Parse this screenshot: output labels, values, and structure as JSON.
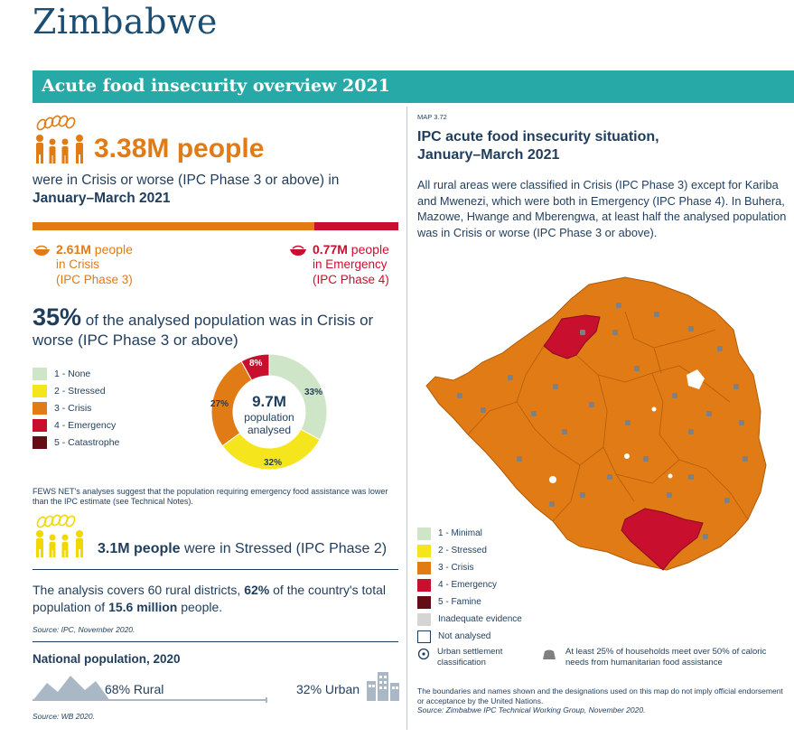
{
  "country": "Zimbabwe",
  "banner_title": "Acute food insecurity overview 2021",
  "headline": {
    "number": "3.38M people",
    "line": "were in Crisis or worse (IPC Phase 3 or above) in",
    "period": "January–March 2021"
  },
  "split": {
    "crisis_share": 0.77,
    "phase3": {
      "num": "2.61M",
      "unit": " people",
      "line1": "in Crisis",
      "line2": "(IPC Phase 3)"
    },
    "phase4": {
      "num": "0.77M",
      "unit": " people",
      "line1": "in Emergency",
      "line2": "(IPC Phase 4)"
    }
  },
  "analysed": {
    "pct": "35%",
    "text": " of the analysed population was in Crisis or worse (IPC Phase 3 or above)"
  },
  "phase_legend": [
    {
      "label": "1 - None",
      "color": "#cfe5c8"
    },
    {
      "label": "2 - Stressed",
      "color": "#f5e51c"
    },
    {
      "label": "3 - Crisis",
      "color": "#e07b16"
    },
    {
      "label": "4 - Emergency",
      "color": "#c8102e"
    },
    {
      "label": "5 - Catastrophe",
      "color": "#640d14"
    }
  ],
  "donut": {
    "value": "9.7M",
    "label1": "population",
    "label2": "analysed",
    "slices": [
      {
        "label": "33%",
        "value": 33,
        "color": "#cfe5c8"
      },
      {
        "label": "32%",
        "value": 32,
        "color": "#f5e51c"
      },
      {
        "label": "27%",
        "value": 27,
        "color": "#e07b16"
      },
      {
        "label": "8%",
        "value": 8,
        "color": "#c8102e"
      }
    ]
  },
  "fews_note": "FEWS NET's analyses suggest that the population requiring emergency food assistance was lower than the IPC estimate (see Technical Notes).",
  "stressed": {
    "num": "3.1M people",
    "text": " were in Stressed (IPC Phase 2)"
  },
  "coverage": {
    "p1": "The analysis covers 60 rural districts, ",
    "pct": "62%",
    "p2": " of the country's total population of ",
    "pop": "15.6 million",
    "p3": " people."
  },
  "source_ipc": "Source: IPC, November 2020.",
  "national_pop": {
    "title": "National population, 2020",
    "rural": "68% Rural",
    "urban": "32% Urban",
    "rural_share": 0.68
  },
  "source_wb": "Source: WB 2020.",
  "map": {
    "id": "MAP 3.72",
    "title": "IPC acute food insecurity situation, January–March 2021",
    "description": "All rural areas were classified in Crisis (IPC Phase 3) except for Kariba and Mwenezi, which were both in Emergency (IPC Phase 4). In Buhera, Mazowe, Hwange and Mberengwa, at least half the analysed population was in Crisis or worse (IPC Phase 3 or above).",
    "legend": [
      {
        "label": "1 - Minimal",
        "color": "#cfe5c8"
      },
      {
        "label": "2 - Stressed",
        "color": "#f5e51c"
      },
      {
        "label": "3 - Crisis",
        "color": "#e07b16"
      },
      {
        "label": "4 - Emergency",
        "color": "#c8102e"
      },
      {
        "label": "5 - Famine",
        "color": "#640d14"
      },
      {
        "label": "Inadequate evidence",
        "color": "#d5d5d5"
      },
      {
        "label": "Not analysed",
        "color": "#ffffff"
      }
    ],
    "urban_legend": "Urban settlement classification",
    "assistance_legend": "At least 25% of households meet over 50% of caloric needs from humanitarian food assistance",
    "disclaimer": "The boundaries and names shown and the designations used on this map do not imply official endorsement or acceptance by the United Nations.",
    "source": "Source: Zimbabwe IPC Technical Working Group, November 2020."
  }
}
